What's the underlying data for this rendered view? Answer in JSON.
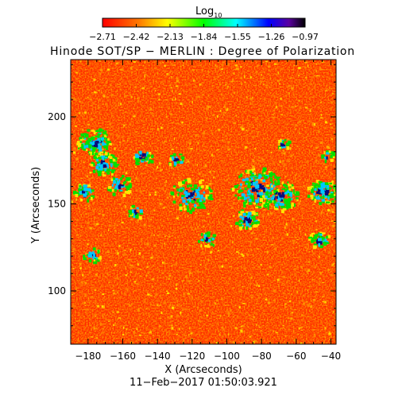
{
  "colorbar": {
    "label_base": "Log",
    "label_sub": "10",
    "ticks": [
      "−2.71",
      "−2.42",
      "−2.13",
      "−1.84",
      "−1.55",
      "−1.26",
      "−0.97"
    ],
    "colors": [
      "#ff0000",
      "#ff7a00",
      "#ffff00",
      "#00ff00",
      "#00ffff",
      "#0000ff",
      "#000000"
    ]
  },
  "title": "Hinode SOT/SP − MERLIN : Degree of Polarization",
  "xlabel": "X (Arcseconds)",
  "ylabel": "Y (Arcseconds)",
  "xticks": [
    "−180",
    "−160",
    "−140",
    "−120",
    "−100",
    "−80",
    "−60",
    "−40"
  ],
  "yticks": [
    "200",
    "150",
    "100"
  ],
  "timestamp": "11−Feb−2017 01:50:03.921",
  "image_palette": {
    "background": "#ff2a00",
    "mid": "#ff8c00",
    "high": "#ffe600",
    "green": "#00e000",
    "cyan": "#00c8ff",
    "deep": "#0a0a7a"
  }
}
